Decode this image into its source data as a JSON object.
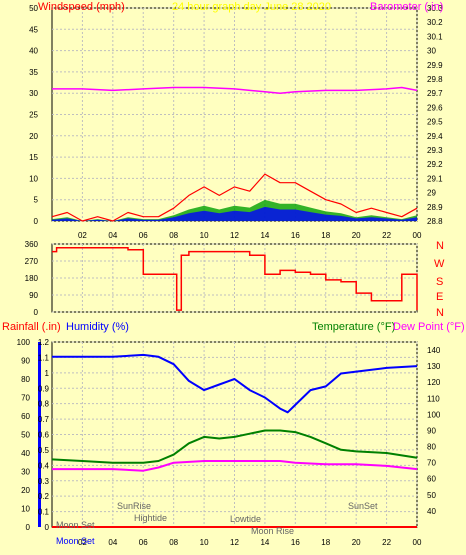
{
  "page_title": "24 hour graph day June 28 2020",
  "colors": {
    "background": "#ffffc0",
    "grid": "#bfbfbf",
    "wind_speed": "#ff0000",
    "wind_gust_bg": "#00a000",
    "wind_avg": "#0000ff",
    "barometer": "#ff00ff",
    "wind_dir": "#ff0000",
    "humidity": "#0000ff",
    "temperature": "#008000",
    "dew_point": "#ff00ff",
    "rainfall": "#ff0000"
  },
  "chart_data": [
    {
      "type": "line",
      "id": "wind_barometer",
      "title": "Windspeed (mph)",
      "right_title": "Barometer (.in)",
      "x_ticks": [
        "02",
        "04",
        "06",
        "08",
        "10",
        "12",
        "14",
        "16",
        "18",
        "20",
        "22",
        "00"
      ],
      "y_left": {
        "min": 0,
        "max": 50,
        "ticks": [
          0,
          5,
          10,
          15,
          20,
          25,
          30,
          35,
          40,
          45,
          50
        ]
      },
      "y_right": {
        "min": 28.8,
        "max": 30.3,
        "ticks": [
          "28.8",
          "28.9",
          "29",
          "29.1",
          "29.2",
          "29.3",
          "29.4",
          "29.5",
          "29.6",
          "29.7",
          "29.8",
          "29.9",
          "30",
          "30.1",
          "30.2",
          "30.3"
        ]
      },
      "series": [
        {
          "role": "barometer",
          "x": [
            0,
            2,
            4,
            6,
            8,
            10,
            12,
            14,
            15,
            16,
            18,
            20,
            22,
            23,
            24
          ],
          "y": [
            29.73,
            29.73,
            29.72,
            29.73,
            29.74,
            29.74,
            29.73,
            29.71,
            29.7,
            29.71,
            29.72,
            29.72,
            29.73,
            29.74,
            29.72
          ]
        },
        {
          "role": "wind_speed",
          "x": [
            0,
            1,
            2,
            3,
            4,
            5,
            6,
            7,
            8,
            9,
            10,
            11,
            12,
            13,
            14,
            15,
            16,
            17,
            18,
            19,
            20,
            21,
            22,
            23,
            24
          ],
          "y": [
            1,
            2,
            0,
            1,
            0,
            2,
            1,
            1,
            3,
            6,
            8,
            6,
            8,
            7,
            11,
            9,
            9,
            7,
            5,
            4,
            2,
            3,
            2,
            1,
            3
          ]
        }
      ]
    },
    {
      "type": "line",
      "id": "wind_direction",
      "y_left": {
        "min": 0,
        "max": 360,
        "ticks": [
          0,
          90,
          180,
          270,
          360
        ]
      },
      "right_labels": [
        "N",
        "W",
        "S",
        "E",
        "N"
      ],
      "series": [
        {
          "role": "wind_dir",
          "x": [
            0,
            0.3,
            1,
            4,
            5,
            6,
            6.5,
            7,
            8,
            8.2,
            8.5,
            9,
            10,
            11,
            12,
            13,
            14,
            15,
            16,
            17,
            18,
            19,
            20,
            21,
            22,
            23,
            24
          ],
          "y": [
            320,
            340,
            340,
            340,
            330,
            200,
            200,
            200,
            200,
            10,
            300,
            320,
            320,
            320,
            320,
            300,
            200,
            220,
            210,
            200,
            170,
            160,
            100,
            60,
            60,
            200,
            10
          ]
        }
      ]
    },
    {
      "type": "line",
      "id": "humidity_temperature",
      "left_title": "Rainfall (.in)",
      "left_title_2": "Humidity (%)",
      "right_title": "Temperature (°F)",
      "right_title_2": "Dew Point (°F)",
      "y_rain": {
        "min": 0,
        "max": 1.2,
        "ticks": [
          "0",
          "0.1",
          "0.2",
          "0.3",
          "0.4",
          "0.5",
          "0.6",
          "0.7",
          "0.8",
          "0.9",
          "1",
          "1.1",
          "1.2"
        ]
      },
      "y_hum": {
        "min": 0,
        "max": 100,
        "ticks": [
          0,
          10,
          20,
          30,
          40,
          50,
          60,
          70,
          80,
          90,
          100
        ]
      },
      "y_temp": {
        "min": 30,
        "max": 145,
        "ticks": [
          40,
          50,
          60,
          70,
          80,
          90,
          100,
          110,
          120,
          130,
          140
        ]
      },
      "series": [
        {
          "role": "humidity",
          "x": [
            0,
            2,
            4,
            6,
            7,
            8,
            9,
            10,
            11,
            12,
            13,
            14,
            15,
            15.5,
            16,
            17,
            18,
            19,
            20,
            22,
            24
          ],
          "y": [
            92,
            92,
            92,
            93,
            92,
            88,
            79,
            74,
            77,
            80,
            74,
            70,
            64,
            62,
            66,
            74,
            76,
            83,
            84,
            86,
            87
          ]
        },
        {
          "role": "temperature",
          "x": [
            0,
            2,
            4,
            6,
            7,
            8,
            9,
            10,
            11,
            12,
            13,
            14,
            15,
            16,
            17,
            18,
            19,
            20,
            22,
            24
          ],
          "y": [
            72,
            71,
            70,
            70,
            71,
            75,
            82,
            86,
            85,
            86,
            88,
            90,
            90,
            89,
            86,
            82,
            78,
            77,
            76,
            73
          ]
        },
        {
          "role": "dew_point",
          "x": [
            0,
            2,
            4,
            6,
            7,
            8,
            10,
            12,
            14,
            15,
            16,
            18,
            20,
            22,
            24
          ],
          "y": [
            66,
            66,
            66,
            65,
            67,
            70,
            71,
            71,
            71,
            71,
            70,
            69,
            69,
            68,
            66
          ]
        },
        {
          "role": "rainfall",
          "x": [
            0,
            24
          ],
          "y": [
            0,
            0
          ]
        }
      ],
      "annotations": {
        "sunrise": "SunRise",
        "hightide": "Hightide",
        "lowtide": "Lowtide",
        "moonrise": "Moon Rise",
        "sunset": "SunSet",
        "moonset": "Moon Set",
        "moonset_2": "Moon Set"
      }
    }
  ]
}
